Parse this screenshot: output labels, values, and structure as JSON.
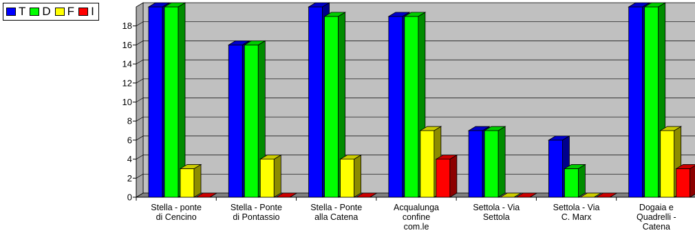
{
  "chart_data": {
    "type": "bar",
    "categories": [
      "Stella - ponte di Cencino",
      "Stella - Ponte di Pontassio",
      "Stella - Ponte alla Catena",
      "Acqualunga confine com.le",
      "Settola - Via Settola",
      "Settola - Via C. Marx",
      "Dogaia e Quadrelli - Catena"
    ],
    "category_lines": [
      [
        "Stella - ponte",
        "di Cencino"
      ],
      [
        "Stella - Ponte",
        "di Pontassio"
      ],
      [
        "Stella - Ponte",
        "alla Catena"
      ],
      [
        "Acqualunga",
        "confine",
        "com.le"
      ],
      [
        "Settola - Via",
        "Settola"
      ],
      [
        "Settola - Via",
        "C. Marx"
      ],
      [
        "Dogaia e",
        "Quadrelli -",
        "Catena"
      ]
    ],
    "series": [
      {
        "name": "T",
        "color": "#0000ff",
        "values": [
          20,
          16,
          20,
          19,
          7,
          6,
          20
        ]
      },
      {
        "name": "D",
        "color": "#00ff00",
        "values": [
          20,
          16,
          19,
          19,
          7,
          3,
          20
        ]
      },
      {
        "name": "F",
        "color": "#ffff00",
        "values": [
          3,
          4,
          4,
          7,
          0,
          0,
          7
        ]
      },
      {
        "name": "I",
        "color": "#ff0000",
        "values": [
          0,
          0,
          0,
          4,
          0,
          0,
          3
        ]
      }
    ],
    "ylim": [
      0,
      20
    ],
    "yticks": [
      0,
      2,
      4,
      6,
      8,
      10,
      12,
      14,
      16,
      18
    ],
    "grid": true,
    "legend_position": "top-left",
    "wall_color": "#c0c0c0"
  }
}
